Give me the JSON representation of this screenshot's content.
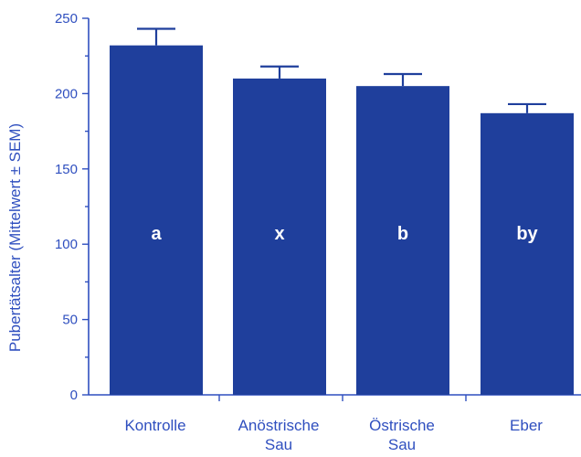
{
  "chart_data": {
    "type": "bar",
    "categories": [
      [
        "Kontrolle"
      ],
      [
        "Anöstrische",
        "Sau"
      ],
      [
        "Östrische",
        "Sau"
      ],
      [
        "Eber"
      ]
    ],
    "values": [
      232,
      210,
      205,
      187
    ],
    "error": [
      11,
      8,
      8,
      6
    ],
    "bar_letters": [
      "a",
      "x",
      "b",
      "by"
    ],
    "ylabel": "Pubertätsalter (Mittelwert ± SEM)",
    "ylim": [
      0,
      250
    ],
    "yticks": [
      0,
      50,
      100,
      150,
      200,
      250
    ],
    "grid": false,
    "bar_color": "#1f3f9c",
    "axis_color": "#2f4fbf"
  }
}
